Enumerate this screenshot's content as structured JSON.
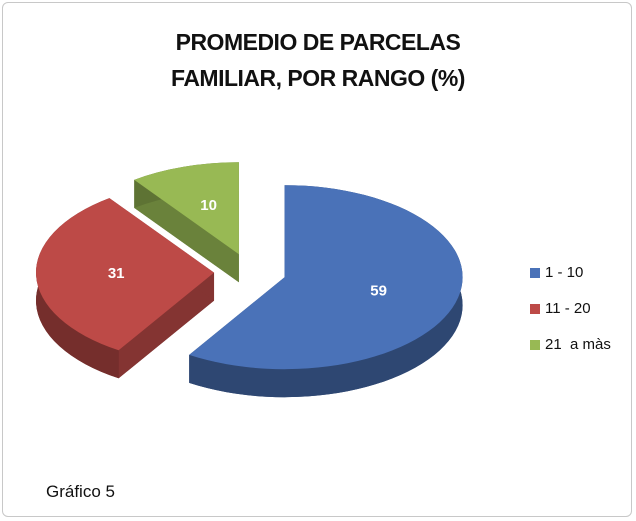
{
  "chart_data": {
    "type": "pie",
    "title": "PROMEDIO DE PARCELAS FAMILIAR, POR RANGO (%)",
    "categories": [
      "1 - 10",
      "11 - 20",
      "21  a màs"
    ],
    "values": [
      59,
      31,
      10
    ],
    "colors": [
      "#4a72b8",
      "#bd4a47",
      "#98b954"
    ],
    "legend": "right",
    "annotation": "Gráfico 5"
  }
}
